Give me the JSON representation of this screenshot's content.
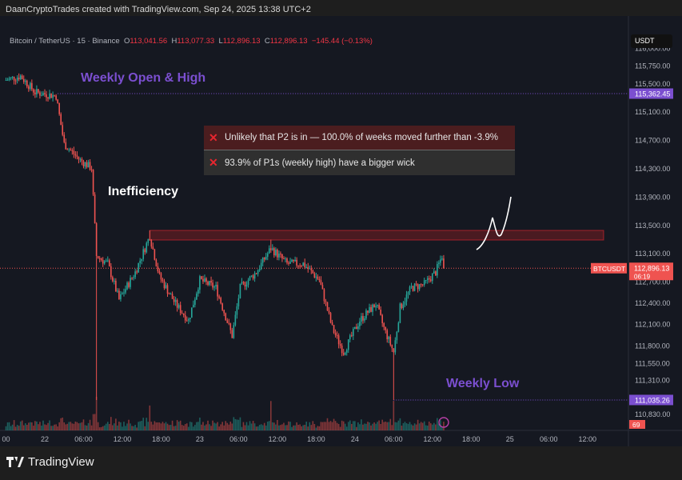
{
  "caption": "DaanCryptoTrades created with TradingView.com, Sep 24, 2025 13:38 UTC+2",
  "legend": {
    "symbol": "Bitcoin / TetherUS · 15 · Binance",
    "o_label": "O",
    "o": "113,041.56",
    "h_label": "H",
    "h": "113,077.33",
    "l_label": "L",
    "l": "112,896.13",
    "c_label": "C",
    "c": "112,896.13",
    "change": "−145.44 (−0.13%)"
  },
  "currency": "USDT",
  "info_box": {
    "rows": [
      "Unlikely that P2 is in — 100.0% of weeks moved further than -3.9%",
      "93.9% of P1s (weekly high) have a bigger wick"
    ],
    "icon": "cross-icon"
  },
  "annotations": {
    "weekly_open": "Weekly Open & High",
    "weekly_low": "Weekly Low",
    "inefficiency": "Inefficiency"
  },
  "colors": {
    "up": "#26a69a",
    "down": "#ef5350",
    "annotation": "#7b4fd0",
    "zone": "#8b1c22",
    "background": "#151821"
  },
  "footer": {
    "logo": "TradingView"
  },
  "chart_data": {
    "type": "candlestick",
    "interval": "15",
    "ylim": [
      110700,
      116150
    ],
    "price_ticks": [
      116000,
      115750,
      115500,
      115100,
      114700,
      114300,
      113900,
      113500,
      113100,
      112700,
      112400,
      112100,
      111800,
      111550,
      111310,
      110830
    ],
    "price_tick_labels": [
      "116,000.00",
      "115,750.00",
      "115,500.00",
      "115,100.00",
      "114,700.00",
      "114,300.00",
      "113,900.00",
      "113,500.00",
      "113,100.00",
      "112,700.00",
      "112,400.00",
      "112,100.00",
      "111,800.00",
      "111,550.00",
      "111,310.00",
      "110,830.00"
    ],
    "time_ticks": [
      {
        "t": "2025-09-21T18:00",
        "label": "00"
      },
      {
        "t": "2025-09-22T00:00",
        "label": "22"
      },
      {
        "t": "2025-09-22T06:00",
        "label": "06:00"
      },
      {
        "t": "2025-09-22T12:00",
        "label": "12:00"
      },
      {
        "t": "2025-09-22T18:00",
        "label": "18:00"
      },
      {
        "t": "2025-09-23T00:00",
        "label": "23"
      },
      {
        "t": "2025-09-23T06:00",
        "label": "06:00"
      },
      {
        "t": "2025-09-23T12:00",
        "label": "12:00"
      },
      {
        "t": "2025-09-23T18:00",
        "label": "18:00"
      },
      {
        "t": "2025-09-24T00:00",
        "label": "24"
      },
      {
        "t": "2025-09-24T06:00",
        "label": "06:00"
      },
      {
        "t": "2025-09-24T12:00",
        "label": "12:00"
      },
      {
        "t": "2025-09-24T18:00",
        "label": "18:00"
      },
      {
        "t": "2025-09-25T00:00",
        "label": "25"
      },
      {
        "t": "2025-09-25T06:00",
        "label": "06:00"
      },
      {
        "t": "2025-09-25T12:00",
        "label": "12:00"
      }
    ],
    "price_path": [
      [
        "2025-09-21T17:45",
        115550
      ],
      [
        "2025-09-21T20:15",
        115610
      ],
      [
        "2025-09-21T22:30",
        115380
      ],
      [
        "2025-09-22T01:45",
        115330
      ],
      [
        "2025-09-22T03:00",
        114650
      ],
      [
        "2025-09-22T05:30",
        114420
      ],
      [
        "2025-09-22T07:15",
        114310
      ],
      [
        "2025-09-22T08:00",
        113070
      ],
      [
        "2025-09-22T09:45",
        112960
      ],
      [
        "2025-09-22T11:30",
        112450
      ],
      [
        "2025-09-22T14:00",
        112840
      ],
      [
        "2025-09-22T16:15",
        113350
      ],
      [
        "2025-09-22T17:45",
        112780
      ],
      [
        "2025-09-22T20:15",
        112390
      ],
      [
        "2025-09-22T22:15",
        112160
      ],
      [
        "2025-09-23T00:00",
        112730
      ],
      [
        "2025-09-23T02:30",
        112620
      ],
      [
        "2025-09-23T05:00",
        111940
      ],
      [
        "2025-09-23T06:15",
        112620
      ],
      [
        "2025-09-23T08:45",
        112840
      ],
      [
        "2025-09-23T11:00",
        113180
      ],
      [
        "2025-09-23T13:30",
        112960
      ],
      [
        "2025-09-23T16:00",
        112960
      ],
      [
        "2025-09-23T18:30",
        112730
      ],
      [
        "2025-09-23T20:30",
        112050
      ],
      [
        "2025-09-23T22:15",
        111710
      ],
      [
        "2025-09-24T00:45",
        112160
      ],
      [
        "2025-09-24T03:15",
        112390
      ],
      [
        "2025-09-24T04:30",
        112050
      ],
      [
        "2025-09-24T06:00",
        111710
      ],
      [
        "2025-09-24T07:00",
        112340
      ],
      [
        "2025-09-24T08:45",
        112620
      ],
      [
        "2025-09-24T10:45",
        112670
      ],
      [
        "2025-09-24T12:30",
        112840
      ],
      [
        "2025-09-24T13:30",
        113070
      ],
      [
        "2025-09-24T13:45",
        112896.13
      ]
    ],
    "wicks": [
      [
        "2025-09-22T08:00",
        111035
      ],
      [
        "2025-09-24T06:00",
        111035.26
      ],
      [
        "2025-09-22T16:15",
        113430
      ],
      [
        "2025-09-23T11:00",
        113300
      ]
    ],
    "levels": {
      "weekly_open": {
        "price": 115362.45,
        "label": "115,362.45",
        "from": "2025-09-22T02:00"
      },
      "weekly_low": {
        "price": 111035.26,
        "label": "111,035.26",
        "from": "2025-09-24T06:00"
      },
      "last_price": {
        "price": 112896.13,
        "label": "112,896.13",
        "symbol": "BTCUSDT",
        "countdown": "06:19"
      }
    },
    "zone": {
      "top": 113430,
      "bottom": 113295,
      "from": "2025-09-22T16:15",
      "to": "2025-09-25T14:30"
    },
    "volume_badge": "69"
  }
}
